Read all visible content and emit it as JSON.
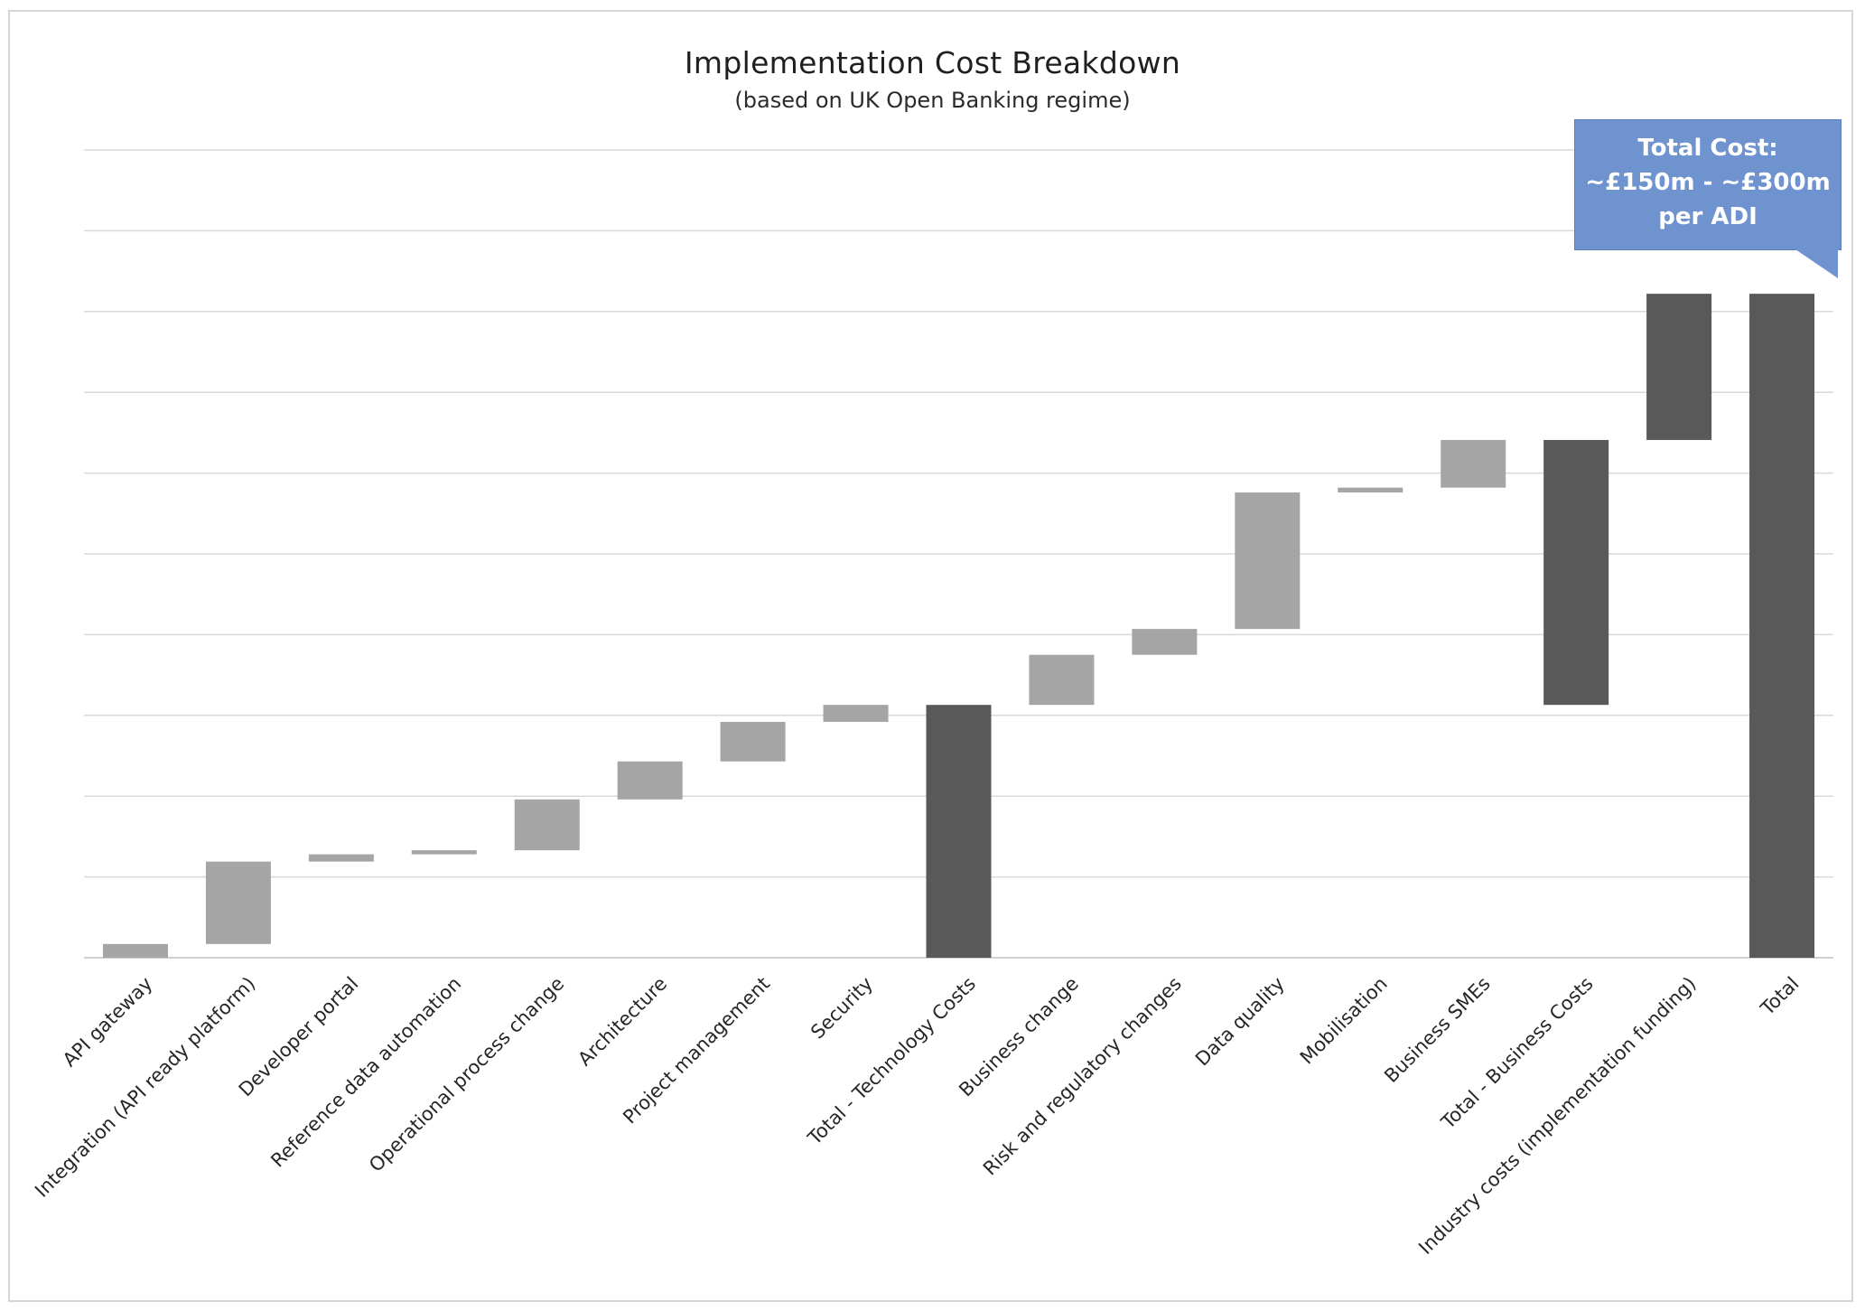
{
  "chart_data": {
    "type": "bar",
    "subtype": "waterfall",
    "title": "Implementation Cost Breakdown",
    "subtitle": "(based on UK Open Banking regime)",
    "xlabel": "",
    "ylabel": "",
    "ylim": [
      0,
      10
    ],
    "grid": true,
    "legend": "none",
    "categories": [
      "API gateway",
      "Integration (API ready platform)",
      "Developer portal",
      "Reference data automation",
      "Operational process change",
      "Architecture",
      "Project management",
      "Security",
      "Total - Technology Costs",
      "Business change",
      "Risk and regulatory changes",
      "Data quality",
      "Mobilisation",
      "Business SMEs",
      "Total - Business Costs",
      "Industry costs (implementation funding)",
      "Total"
    ],
    "bars": [
      {
        "start": 0.0,
        "end": 0.17,
        "kind": "increment"
      },
      {
        "start": 0.17,
        "end": 1.19,
        "kind": "increment"
      },
      {
        "start": 1.19,
        "end": 1.28,
        "kind": "increment"
      },
      {
        "start": 1.28,
        "end": 1.33,
        "kind": "increment"
      },
      {
        "start": 1.33,
        "end": 1.96,
        "kind": "increment"
      },
      {
        "start": 1.96,
        "end": 2.43,
        "kind": "increment"
      },
      {
        "start": 2.43,
        "end": 2.92,
        "kind": "increment"
      },
      {
        "start": 2.92,
        "end": 3.13,
        "kind": "increment"
      },
      {
        "start": 0.0,
        "end": 3.13,
        "kind": "total"
      },
      {
        "start": 3.13,
        "end": 3.75,
        "kind": "increment"
      },
      {
        "start": 3.75,
        "end": 4.07,
        "kind": "increment"
      },
      {
        "start": 4.07,
        "end": 5.76,
        "kind": "increment"
      },
      {
        "start": 5.76,
        "end": 5.82,
        "kind": "increment"
      },
      {
        "start": 5.82,
        "end": 6.41,
        "kind": "increment"
      },
      {
        "start": 3.13,
        "end": 6.41,
        "kind": "total"
      },
      {
        "start": 6.41,
        "end": 8.22,
        "kind": "total"
      },
      {
        "start": 0.0,
        "end": 8.22,
        "kind": "total"
      }
    ],
    "gridlines": [
      0,
      1,
      2,
      3,
      4,
      5,
      6,
      7,
      8,
      9,
      10
    ],
    "colors": {
      "increment": "#a5a5a5",
      "total": "#595959",
      "grid": "#d9d9d9",
      "axis": "#d0d0d0",
      "label": "#262626"
    },
    "annotation": {
      "lines": [
        "Total Cost:",
        "~£150m - ~£300m",
        "per ADI"
      ],
      "color": "#6f93cf"
    }
  }
}
